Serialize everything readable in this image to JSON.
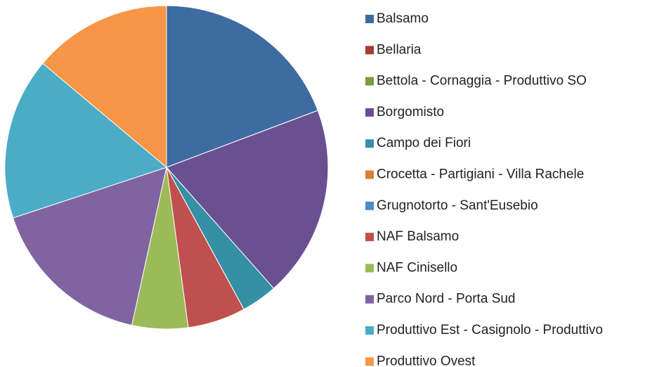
{
  "chart_data": {
    "type": "pie",
    "categories": [
      "Balsamo",
      "Bellaria",
      "Bettola - Cornaggia - Produttivo SO",
      "Borgomisto",
      "Campo dei Fiori",
      "Crocetta - Partigiani - Villa Rachele",
      "Grugnotorto - Sant'Eusebio",
      "NAF Balsamo",
      "NAF Cinisello",
      "Parco Nord - Porta Sud",
      "Produttivo Est - Casignolo - Produttivo",
      "Produttivo Ovest"
    ],
    "values": [
      19.3,
      0,
      0,
      19.2,
      3.6,
      0,
      0,
      5.8,
      5.6,
      16.5,
      16.2,
      13.9
    ],
    "colors": [
      "#3e6ba0",
      "#a33c3a",
      "#7a9a3c",
      "#6a5090",
      "#3590a6",
      "#d98030",
      "#4a8ac8",
      "#c0504d",
      "#9bbb59",
      "#8064a2",
      "#4bacc6",
      "#f79646"
    ],
    "legend": "right"
  }
}
